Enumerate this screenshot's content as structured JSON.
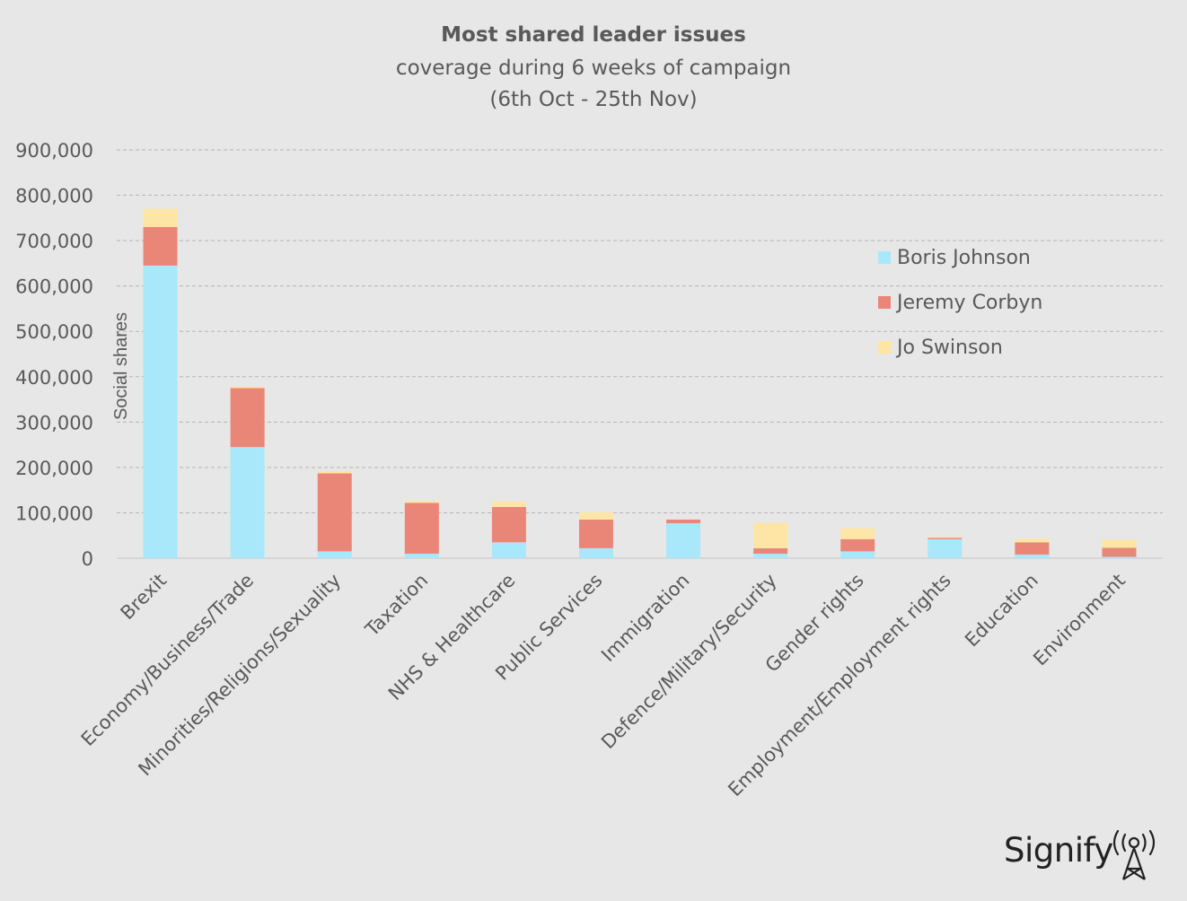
{
  "chart_data": {
    "type": "bar",
    "stacked": true,
    "title": "Most shared leader issues",
    "subtitle": "coverage during 6 weeks of campaign",
    "subtitle2": "(6th Oct - 25th Nov)",
    "xlabel": "",
    "ylabel": "Social shares",
    "ylim": [
      0,
      900000
    ],
    "yticks": [
      0,
      100000,
      200000,
      300000,
      400000,
      500000,
      600000,
      700000,
      800000,
      900000
    ],
    "ytick_labels": [
      "0",
      "100,000",
      "200,000",
      "300,000",
      "400,000",
      "500,000",
      "600,000",
      "700,000",
      "800,000",
      "900,000"
    ],
    "grid": true,
    "legend_position": "right",
    "categories": [
      "Brexit",
      "Economy/Business/Trade",
      "Minorities/Religions/Sexuality",
      "Taxation",
      "NHS & Healthcare",
      "Public Services",
      "Immigration",
      "Defence/Military/Security",
      "Gender rights",
      "Employment/Employment rights",
      "Education",
      "Environment"
    ],
    "series": [
      {
        "name": "Boris Johnson",
        "color": "#a8e8fa",
        "values": [
          645000,
          245000,
          15000,
          10000,
          35000,
          22000,
          77000,
          10000,
          15000,
          42000,
          8000,
          3000
        ]
      },
      {
        "name": "Jeremy Corbyn",
        "color": "#ea8678",
        "values": [
          85000,
          130000,
          172000,
          112000,
          78000,
          63000,
          8000,
          12000,
          27000,
          3000,
          27000,
          20000
        ]
      },
      {
        "name": "Jo Swinson",
        "color": "#fde6a5",
        "values": [
          40000,
          3000,
          5000,
          4000,
          12000,
          16000,
          0,
          56000,
          24000,
          2000,
          8000,
          18000
        ]
      }
    ]
  },
  "brand": {
    "name": "Signify",
    "logo": "signify-antenna-logo"
  },
  "colors": {
    "background": "#e7e7e7",
    "text": "#595959",
    "grid": "#bfbfbf"
  }
}
